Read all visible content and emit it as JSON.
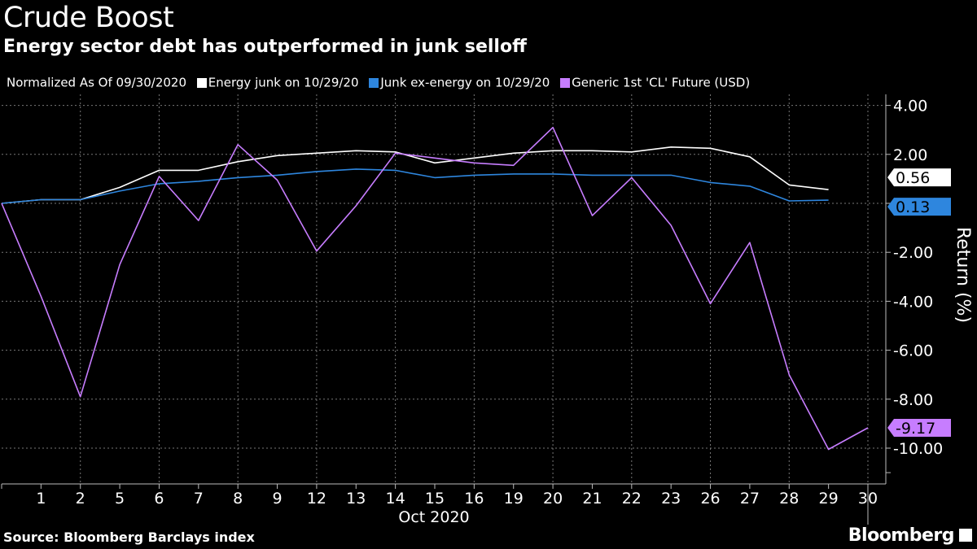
{
  "title": "Crude Boost",
  "subtitle": "Energy sector debt has outperformed in junk selloff",
  "legend": {
    "prefix": "Normalized As Of 09/30/2020",
    "items": [
      {
        "label": "Energy junk on 10/29/20",
        "color": "#ffffff"
      },
      {
        "label": "Junk ex-energy  on 10/29/20",
        "color": "#2e86de"
      },
      {
        "label": "Generic 1st 'CL' Future (USD)",
        "color": "#c77dff"
      }
    ]
  },
  "footer": {
    "source": "Source: Bloomberg Barclays index",
    "logo": "Bloomberg"
  },
  "chart_data": {
    "type": "line",
    "categories": [
      "",
      "1",
      "2",
      "5",
      "6",
      "7",
      "8",
      "9",
      "12",
      "13",
      "14",
      "15",
      "16",
      "19",
      "20",
      "21",
      "22",
      "23",
      "26",
      "27",
      "28",
      "29",
      "30"
    ],
    "xlabel": "Oct 2020",
    "ylabel": "Return (%)",
    "ylim": [
      -11.2,
      4.3
    ],
    "yticks": [
      4,
      2,
      0,
      -2,
      -4,
      -6,
      -8,
      -10
    ],
    "ytick_labels": [
      "4.00",
      "2.00",
      "",
      "-2.00",
      "-4.00",
      "-6.00",
      "-8.00",
      "-10.00"
    ],
    "grid": true,
    "series": [
      {
        "name": "Energy junk on 10/29/20",
        "color": "#ffffff",
        "values": [
          0,
          0.15,
          0.15,
          0.65,
          1.35,
          1.35,
          1.7,
          1.95,
          2.05,
          2.15,
          2.1,
          1.65,
          1.85,
          2.05,
          2.15,
          2.15,
          2.1,
          2.3,
          2.25,
          1.9,
          0.75,
          0.56,
          null
        ],
        "end_label": "0.56"
      },
      {
        "name": "Junk ex-energy  on 10/29/20",
        "color": "#2e86de",
        "values": [
          0,
          0.15,
          0.15,
          0.5,
          0.8,
          0.9,
          1.05,
          1.15,
          1.3,
          1.4,
          1.35,
          1.05,
          1.15,
          1.2,
          1.2,
          1.15,
          1.15,
          1.15,
          0.85,
          0.7,
          0.1,
          0.13,
          null
        ],
        "end_label": "0.13"
      },
      {
        "name": "Generic 1st 'CL' Future (USD)",
        "color": "#c77dff",
        "values": [
          0,
          -3.8,
          -7.9,
          -2.5,
          1.1,
          -0.7,
          2.4,
          0.95,
          -1.95,
          -0.1,
          2.05,
          1.85,
          1.65,
          1.55,
          3.1,
          -0.5,
          1.05,
          -0.9,
          -4.1,
          -1.6,
          -7.0,
          -10.05,
          -9.17
        ],
        "end_label": "-9.17"
      }
    ]
  }
}
